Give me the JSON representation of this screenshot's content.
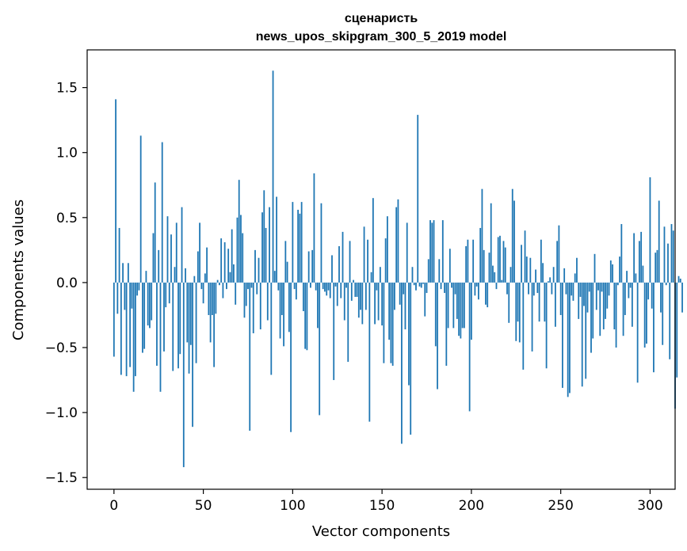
{
  "chart_data": {
    "type": "bar",
    "title_line1": "сценаристь",
    "title_line2": "news_upos_skipgram_300_5_2019 model",
    "xlabel": "Vector components",
    "ylabel": "Components values",
    "xlim": [
      -15,
      314
    ],
    "ylim": [
      -1.59,
      1.79
    ],
    "xticks": [
      0,
      50,
      100,
      150,
      200,
      250,
      300
    ],
    "xtick_labels": [
      "0",
      "50",
      "100",
      "150",
      "200",
      "250",
      "300"
    ],
    "yticks": [
      -1.5,
      -1.0,
      -0.5,
      0.0,
      0.5,
      1.0,
      1.5
    ],
    "ytick_labels": [
      "−1.5",
      "−1.0",
      "−0.5",
      "0.0",
      "0.5",
      "1.0",
      "1.5"
    ],
    "bar_color": "#1f77b4",
    "grid": false,
    "values": [
      -0.57,
      1.41,
      -0.24,
      0.42,
      -0.71,
      0.15,
      -0.21,
      -0.72,
      0.15,
      -0.65,
      -0.2,
      -0.84,
      -0.72,
      -0.1,
      -0.06,
      1.13,
      -0.54,
      -0.51,
      0.09,
      -0.33,
      -0.35,
      -0.29,
      0.38,
      0.77,
      -0.64,
      0.25,
      -0.84,
      1.08,
      -0.53,
      -0.19,
      0.51,
      -0.16,
      0.37,
      -0.68,
      0.12,
      0.46,
      -0.66,
      -0.55,
      0.58,
      -1.42,
      0.11,
      -0.46,
      -0.7,
      -0.48,
      -1.11,
      0.05,
      -0.62,
      0.24,
      0.46,
      -0.05,
      -0.16,
      0.07,
      0.27,
      -0.25,
      -0.46,
      -0.25,
      -0.65,
      -0.24,
      0.02,
      -0.02,
      0.34,
      -0.12,
      0.31,
      -0.05,
      0.26,
      0.08,
      0.41,
      0.14,
      -0.17,
      0.5,
      0.79,
      0.52,
      0.38,
      -0.27,
      -0.18,
      -0.05,
      -1.14,
      -0.04,
      -0.39,
      0.25,
      -0.09,
      0.19,
      -0.36,
      0.54,
      0.71,
      0.42,
      -0.29,
      0.58,
      -0.71,
      1.63,
      0.09,
      0.66,
      -0.06,
      -0.43,
      -0.25,
      -0.49,
      0.32,
      0.16,
      -0.38,
      -1.15,
      0.62,
      -0.05,
      -0.13,
      0.56,
      0.53,
      0.62,
      -0.22,
      -0.51,
      -0.52,
      0.24,
      -0.04,
      0.25,
      0.84,
      -0.06,
      -0.35,
      -1.02,
      0.61,
      -0.05,
      -0.07,
      -0.1,
      -0.06,
      -0.12,
      0.21,
      -0.75,
      -0.03,
      -0.18,
      0.28,
      -0.12,
      0.39,
      -0.29,
      -0.04,
      -0.61,
      0.32,
      -0.14,
      0.02,
      -0.11,
      -0.11,
      -0.27,
      -0.21,
      -0.32,
      0.43,
      -0.21,
      0.33,
      -1.07,
      0.08,
      0.65,
      -0.32,
      -0.06,
      -0.29,
      0.12,
      -0.33,
      -0.62,
      0.34,
      0.51,
      -0.44,
      -0.62,
      -0.64,
      -0.21,
      0.58,
      0.64,
      -0.17,
      -1.24,
      -0.09,
      -0.36,
      0.46,
      -0.79,
      -1.17,
      0.12,
      -0.02,
      -0.06,
      1.29,
      -0.03,
      -0.04,
      -0.01,
      -0.26,
      -0.08,
      0.18,
      0.48,
      0.46,
      0.48,
      -0.49,
      -0.82,
      0.18,
      -0.05,
      0.48,
      -0.08,
      -0.64,
      -0.35,
      0.26,
      -0.04,
      -0.35,
      -0.09,
      -0.28,
      -0.41,
      -0.43,
      -0.35,
      -0.35,
      0.28,
      0.33,
      -0.99,
      -0.44,
      0.33,
      -0.1,
      -0.03,
      -0.13,
      0.42,
      0.72,
      0.25,
      -0.17,
      -0.19,
      0.23,
      0.61,
      0.13,
      0.08,
      -0.05,
      0.35,
      0.36,
      0.02,
      0.32,
      0.27,
      -0.09,
      -0.31,
      0.12,
      0.72,
      0.63,
      -0.45,
      -0.3,
      -0.46,
      0.29,
      -0.67,
      0.4,
      0.2,
      -0.09,
      0.19,
      -0.53,
      -0.1,
      0.1,
      -0.08,
      -0.3,
      0.33,
      0.15,
      -0.3,
      -0.66,
      0.01,
      0.04,
      -0.09,
      0.12,
      -0.34,
      0.32,
      0.44,
      -0.25,
      -0.81,
      0.11,
      -0.09,
      -0.88,
      -0.85,
      -0.1,
      -0.14,
      0.07,
      0.19,
      -0.28,
      -0.11,
      -0.8,
      -0.18,
      -0.74,
      -0.23,
      -0.07,
      -0.54,
      -0.43,
      0.22,
      -0.21,
      -0.06,
      -0.41,
      -0.07,
      -0.36,
      -0.28,
      -0.2,
      -0.1,
      0.17,
      0.14,
      -0.36,
      -0.5,
      -0.02,
      0.2,
      0.45,
      -0.41,
      -0.25,
      0.09,
      -0.12,
      -0.04,
      -0.34,
      0.38,
      0.07,
      -0.77,
      0.32,
      0.39,
      0.13,
      -0.5,
      -0.47,
      -0.13,
      0.81,
      -0.2,
      -0.69,
      0.23,
      0.25,
      0.63,
      -0.23,
      -0.48,
      0.43,
      -0.02,
      0.3,
      -0.59,
      0.45,
      0.4,
      -0.97,
      -0.73,
      0.05,
      0.03,
      -0.23
    ]
  }
}
